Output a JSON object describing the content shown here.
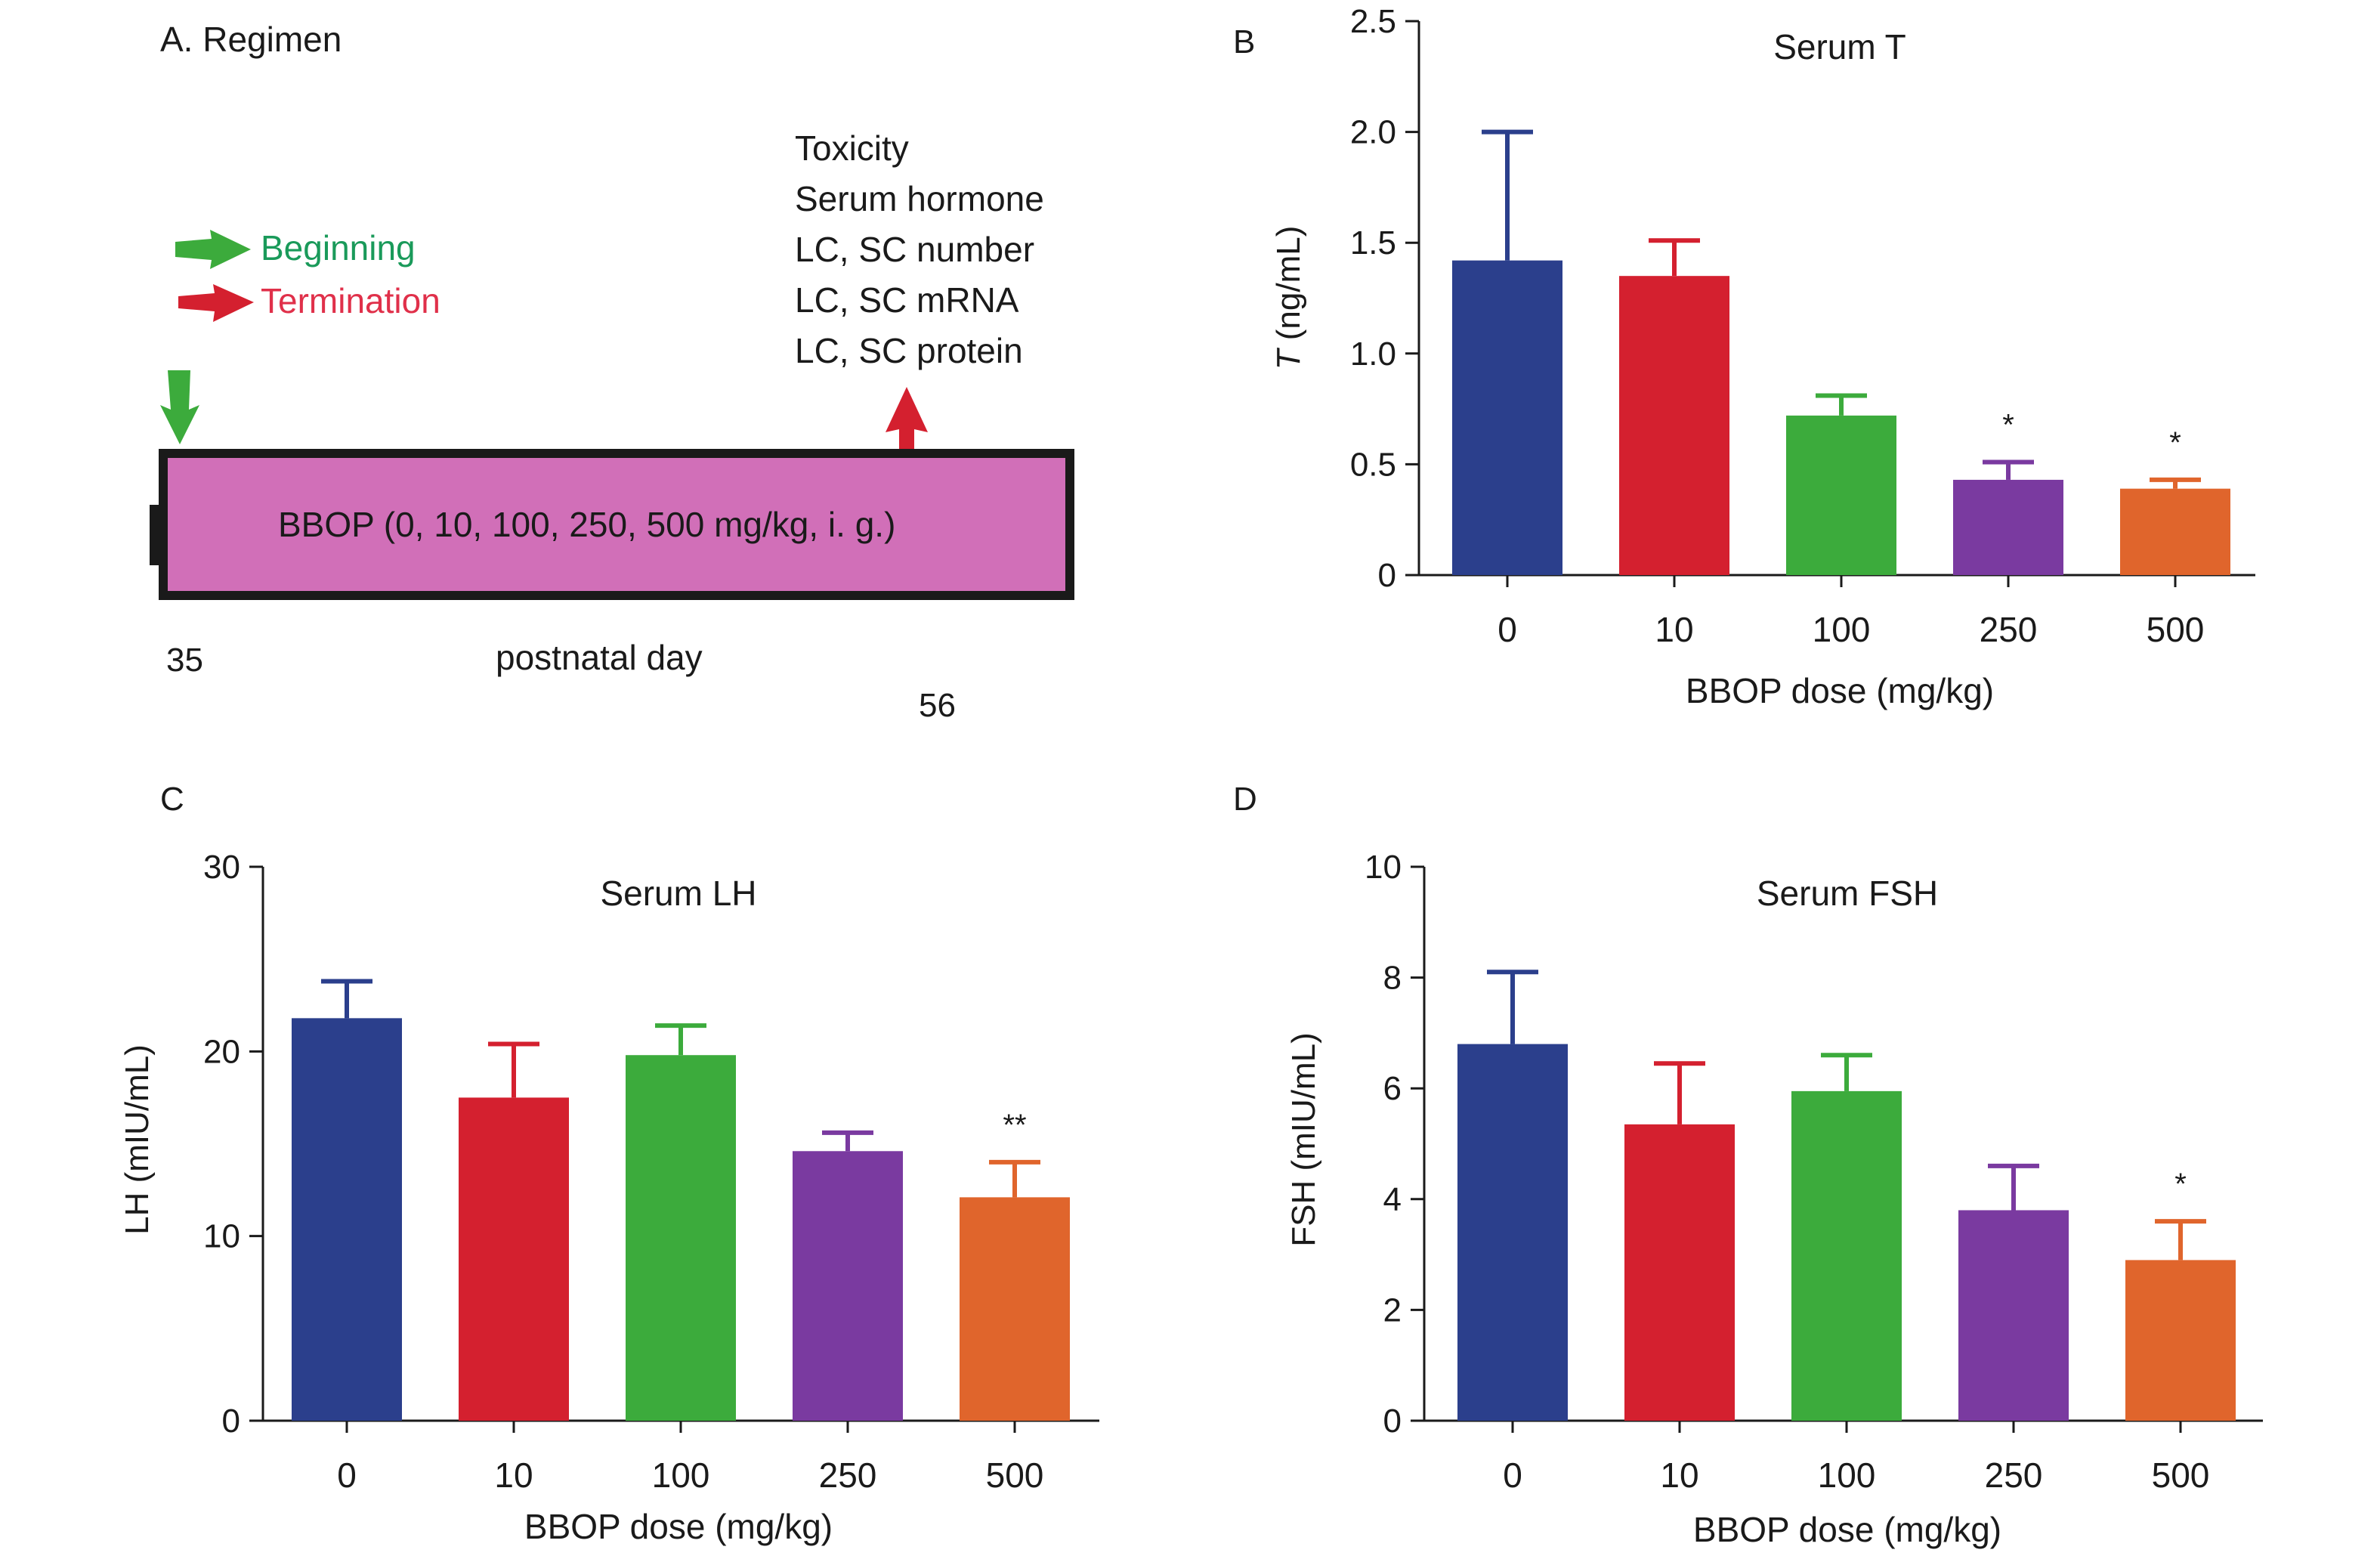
{
  "panel_labels": {
    "a": "A. Regimen",
    "b": "B",
    "c": "C",
    "d": "D"
  },
  "regimen": {
    "legend": [
      {
        "label": "Beginning",
        "color": "#1a9a5a",
        "arrow_color": "#3cab3c",
        "icon": "green-arrow-right"
      },
      {
        "label": "Termination",
        "color": "#e0304a",
        "arrow_color": "#d4202f",
        "icon": "red-arrow-right"
      }
    ],
    "endpoints": [
      "Toxicity",
      "Serum hormone",
      "LC, SC number",
      "LC, SC mRNA",
      "LC, SC protein"
    ],
    "bar_label": "BBOP (0, 10, 100, 250, 500 mg/kg, i. g.)",
    "bar_color": "#d16fb8",
    "day_start": "35",
    "day_end": "56",
    "day_axis_label": "postnatal day"
  },
  "chart_data": [
    {
      "type": "bar",
      "title": "Serum T",
      "xlabel": "BBOP dose (mg/kg)",
      "ylabel_italic": "T",
      "ylabel_rest": " (ng/mL)",
      "categories": [
        "0",
        "10",
        "100",
        "250",
        "500"
      ],
      "values": [
        1.42,
        1.35,
        0.72,
        0.43,
        0.39
      ],
      "errors": [
        0.58,
        0.16,
        0.09,
        0.08,
        0.04
      ],
      "annotations": [
        "",
        "",
        "",
        "*",
        "*"
      ],
      "ylim": [
        0,
        2.5
      ],
      "yticks": [
        "0",
        "0.5",
        "1.0",
        "1.5",
        "2.0",
        "2.5"
      ],
      "yticks_values": [
        0,
        0.5,
        1.0,
        1.5,
        2.0,
        2.5
      ],
      "colors": [
        "#2b3f8c",
        "#d4202f",
        "#3cab3c",
        "#7a3aa0",
        "#e0652c"
      ]
    },
    {
      "type": "bar",
      "title": "Serum LH",
      "xlabel": "BBOP dose (mg/kg)",
      "ylabel_italic": "",
      "ylabel_rest": "LH (mIU/mL)",
      "categories": [
        "0",
        "10",
        "100",
        "250",
        "500"
      ],
      "values": [
        21.8,
        17.5,
        19.8,
        14.6,
        12.1
      ],
      "errors": [
        2.0,
        2.9,
        1.6,
        1.0,
        1.9
      ],
      "annotations": [
        "",
        "",
        "",
        "",
        "**"
      ],
      "ylim": [
        0,
        30
      ],
      "yticks": [
        "0",
        "10",
        "20",
        "30"
      ],
      "yticks_values": [
        0,
        10,
        20,
        30
      ],
      "colors": [
        "#2b3f8c",
        "#d4202f",
        "#3cab3c",
        "#7a3aa0",
        "#e0652c"
      ]
    },
    {
      "type": "bar",
      "title": "Serum FSH",
      "xlabel": "BBOP dose (mg/kg)",
      "ylabel_italic": "",
      "ylabel_rest": "FSH (mIU/mL)",
      "categories": [
        "0",
        "10",
        "100",
        "250",
        "500"
      ],
      "values": [
        6.8,
        5.35,
        5.95,
        3.8,
        2.9
      ],
      "errors": [
        1.3,
        1.1,
        0.65,
        0.8,
        0.7
      ],
      "annotations": [
        "",
        "",
        "",
        "",
        "*"
      ],
      "ylim": [
        0,
        10
      ],
      "yticks": [
        "0",
        "2",
        "4",
        "6",
        "8",
        "10"
      ],
      "yticks_values": [
        0,
        2,
        4,
        6,
        8,
        10
      ],
      "colors": [
        "#2b3f8c",
        "#d4202f",
        "#3cab3c",
        "#7a3aa0",
        "#e0652c"
      ]
    }
  ]
}
